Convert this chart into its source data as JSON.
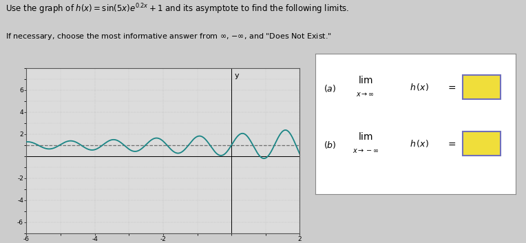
{
  "bg_color": "#cccccc",
  "plot_bg_color": "#dcdcdc",
  "plot_border_color": "#555555",
  "curve_color": "#1a8585",
  "asymptote_color": "#555555",
  "grid_color": "#aaaaaa",
  "xlim": [
    -6,
    2
  ],
  "ylim": [
    -7,
    8
  ],
  "xticks": [
    -6,
    -4,
    -2,
    2
  ],
  "yticks": [
    -6,
    -4,
    -2,
    2,
    4,
    6
  ],
  "asymptote_y": 1,
  "answer_box_fill": "#f0de3a",
  "answer_box_border": "#7070bb",
  "right_panel_bg": "#e8e8e8",
  "right_panel_border": "#888888"
}
